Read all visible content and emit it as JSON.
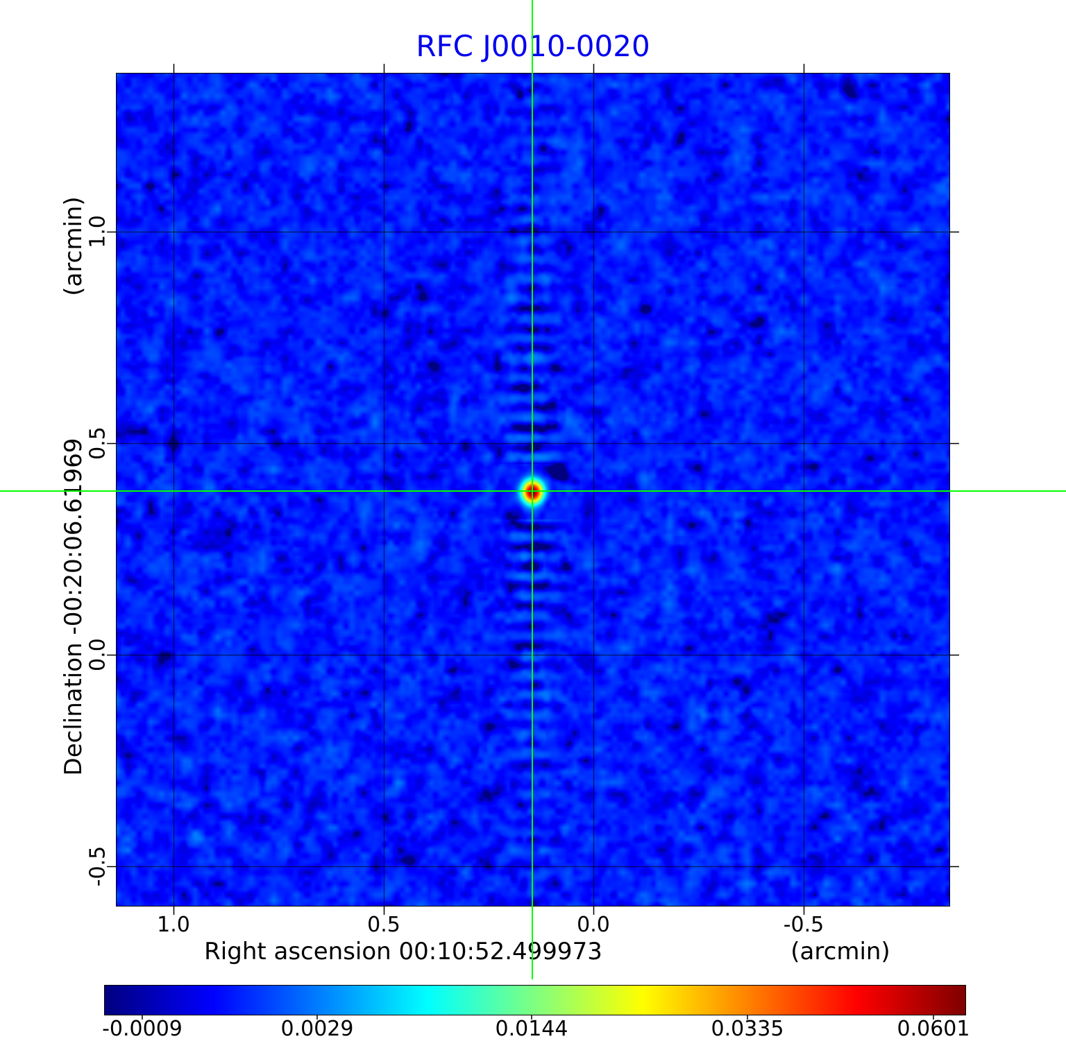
{
  "chart_data": {
    "type": "heatmap",
    "title": "RFC J0010-0020",
    "title_color": "#0000ee",
    "xlabel": "Right ascension  00:10:52.499973",
    "x_unit": "(arcmin)",
    "ylabel": "Declination  -00:20:06.61969",
    "y_unit": "(arcmin)",
    "x_tick_labels": [
      "1.0",
      "0.5",
      "0.0",
      "-0.5"
    ],
    "y_tick_labels": [
      "1.0",
      "0.5",
      "0.0",
      "-0.5"
    ],
    "colorbar_tick_labels": [
      "-0.0009",
      "0.0029",
      "0.0144",
      "0.0335",
      "0.0601"
    ],
    "vmin": -0.0009,
    "vmax": 0.0601,
    "scale": "power-stretch (v = vmin + (vmax - vmin) * t^2)",
    "colormap": "jet",
    "grid": true,
    "crosshair_color": "#00ff00",
    "source": {
      "peak": 0.0601,
      "x_frac": 0.4992,
      "y_frac": 0.5025
    },
    "noise_mean": 0.0005,
    "noise_sigma": 0.0007
  }
}
